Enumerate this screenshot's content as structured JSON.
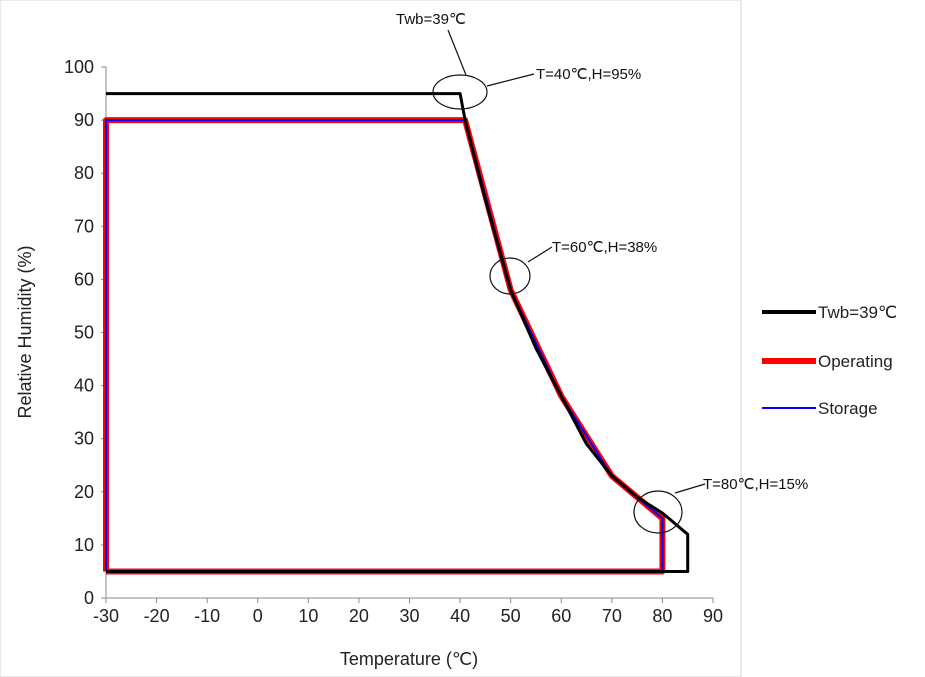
{
  "chart_data": {
    "type": "line",
    "title": "",
    "xlabel": "Temperature (℃)",
    "ylabel": "Relative Humidity (%)",
    "xlim": [
      -30,
      90
    ],
    "ylim": [
      0,
      100
    ],
    "xticks": [
      -30,
      -20,
      -10,
      0,
      10,
      20,
      30,
      40,
      50,
      60,
      70,
      80,
      90
    ],
    "yticks": [
      0,
      10,
      20,
      30,
      40,
      50,
      60,
      70,
      80,
      90,
      100
    ],
    "grid": false,
    "legend_position": "right",
    "series": [
      {
        "name": "Twb=39℃",
        "color": "#000000",
        "x": [
          -30,
          40,
          41,
          45,
          50,
          55,
          60,
          65,
          70,
          75,
          80,
          85,
          85,
          -30
        ],
        "y": [
          95,
          95,
          90,
          75,
          58,
          47,
          38,
          29,
          23,
          19,
          16,
          12,
          5,
          5
        ]
      },
      {
        "name": "Operating",
        "color": "#ff0000",
        "x": [
          -30,
          -30,
          41,
          50,
          60,
          70,
          80,
          80,
          -30
        ],
        "y": [
          5,
          90,
          90,
          58,
          38,
          23,
          15,
          5,
          5
        ]
      },
      {
        "name": "Storage",
        "color": "#0000ff",
        "x": [
          -30,
          -30,
          41,
          50,
          60,
          70,
          80,
          80,
          -30
        ],
        "y": [
          5,
          90,
          90,
          58,
          38,
          23,
          15,
          5,
          5
        ]
      }
    ],
    "annotations": [
      {
        "text": "Twb=39℃",
        "point": [
          40,
          95
        ]
      },
      {
        "text": "T=40℃,H=95%",
        "point": [
          40,
          95
        ]
      },
      {
        "text": "T=60℃,H=38%",
        "point": [
          50,
          60
        ]
      },
      {
        "text": "T=80℃,H=15%",
        "point": [
          80,
          15
        ]
      }
    ]
  }
}
